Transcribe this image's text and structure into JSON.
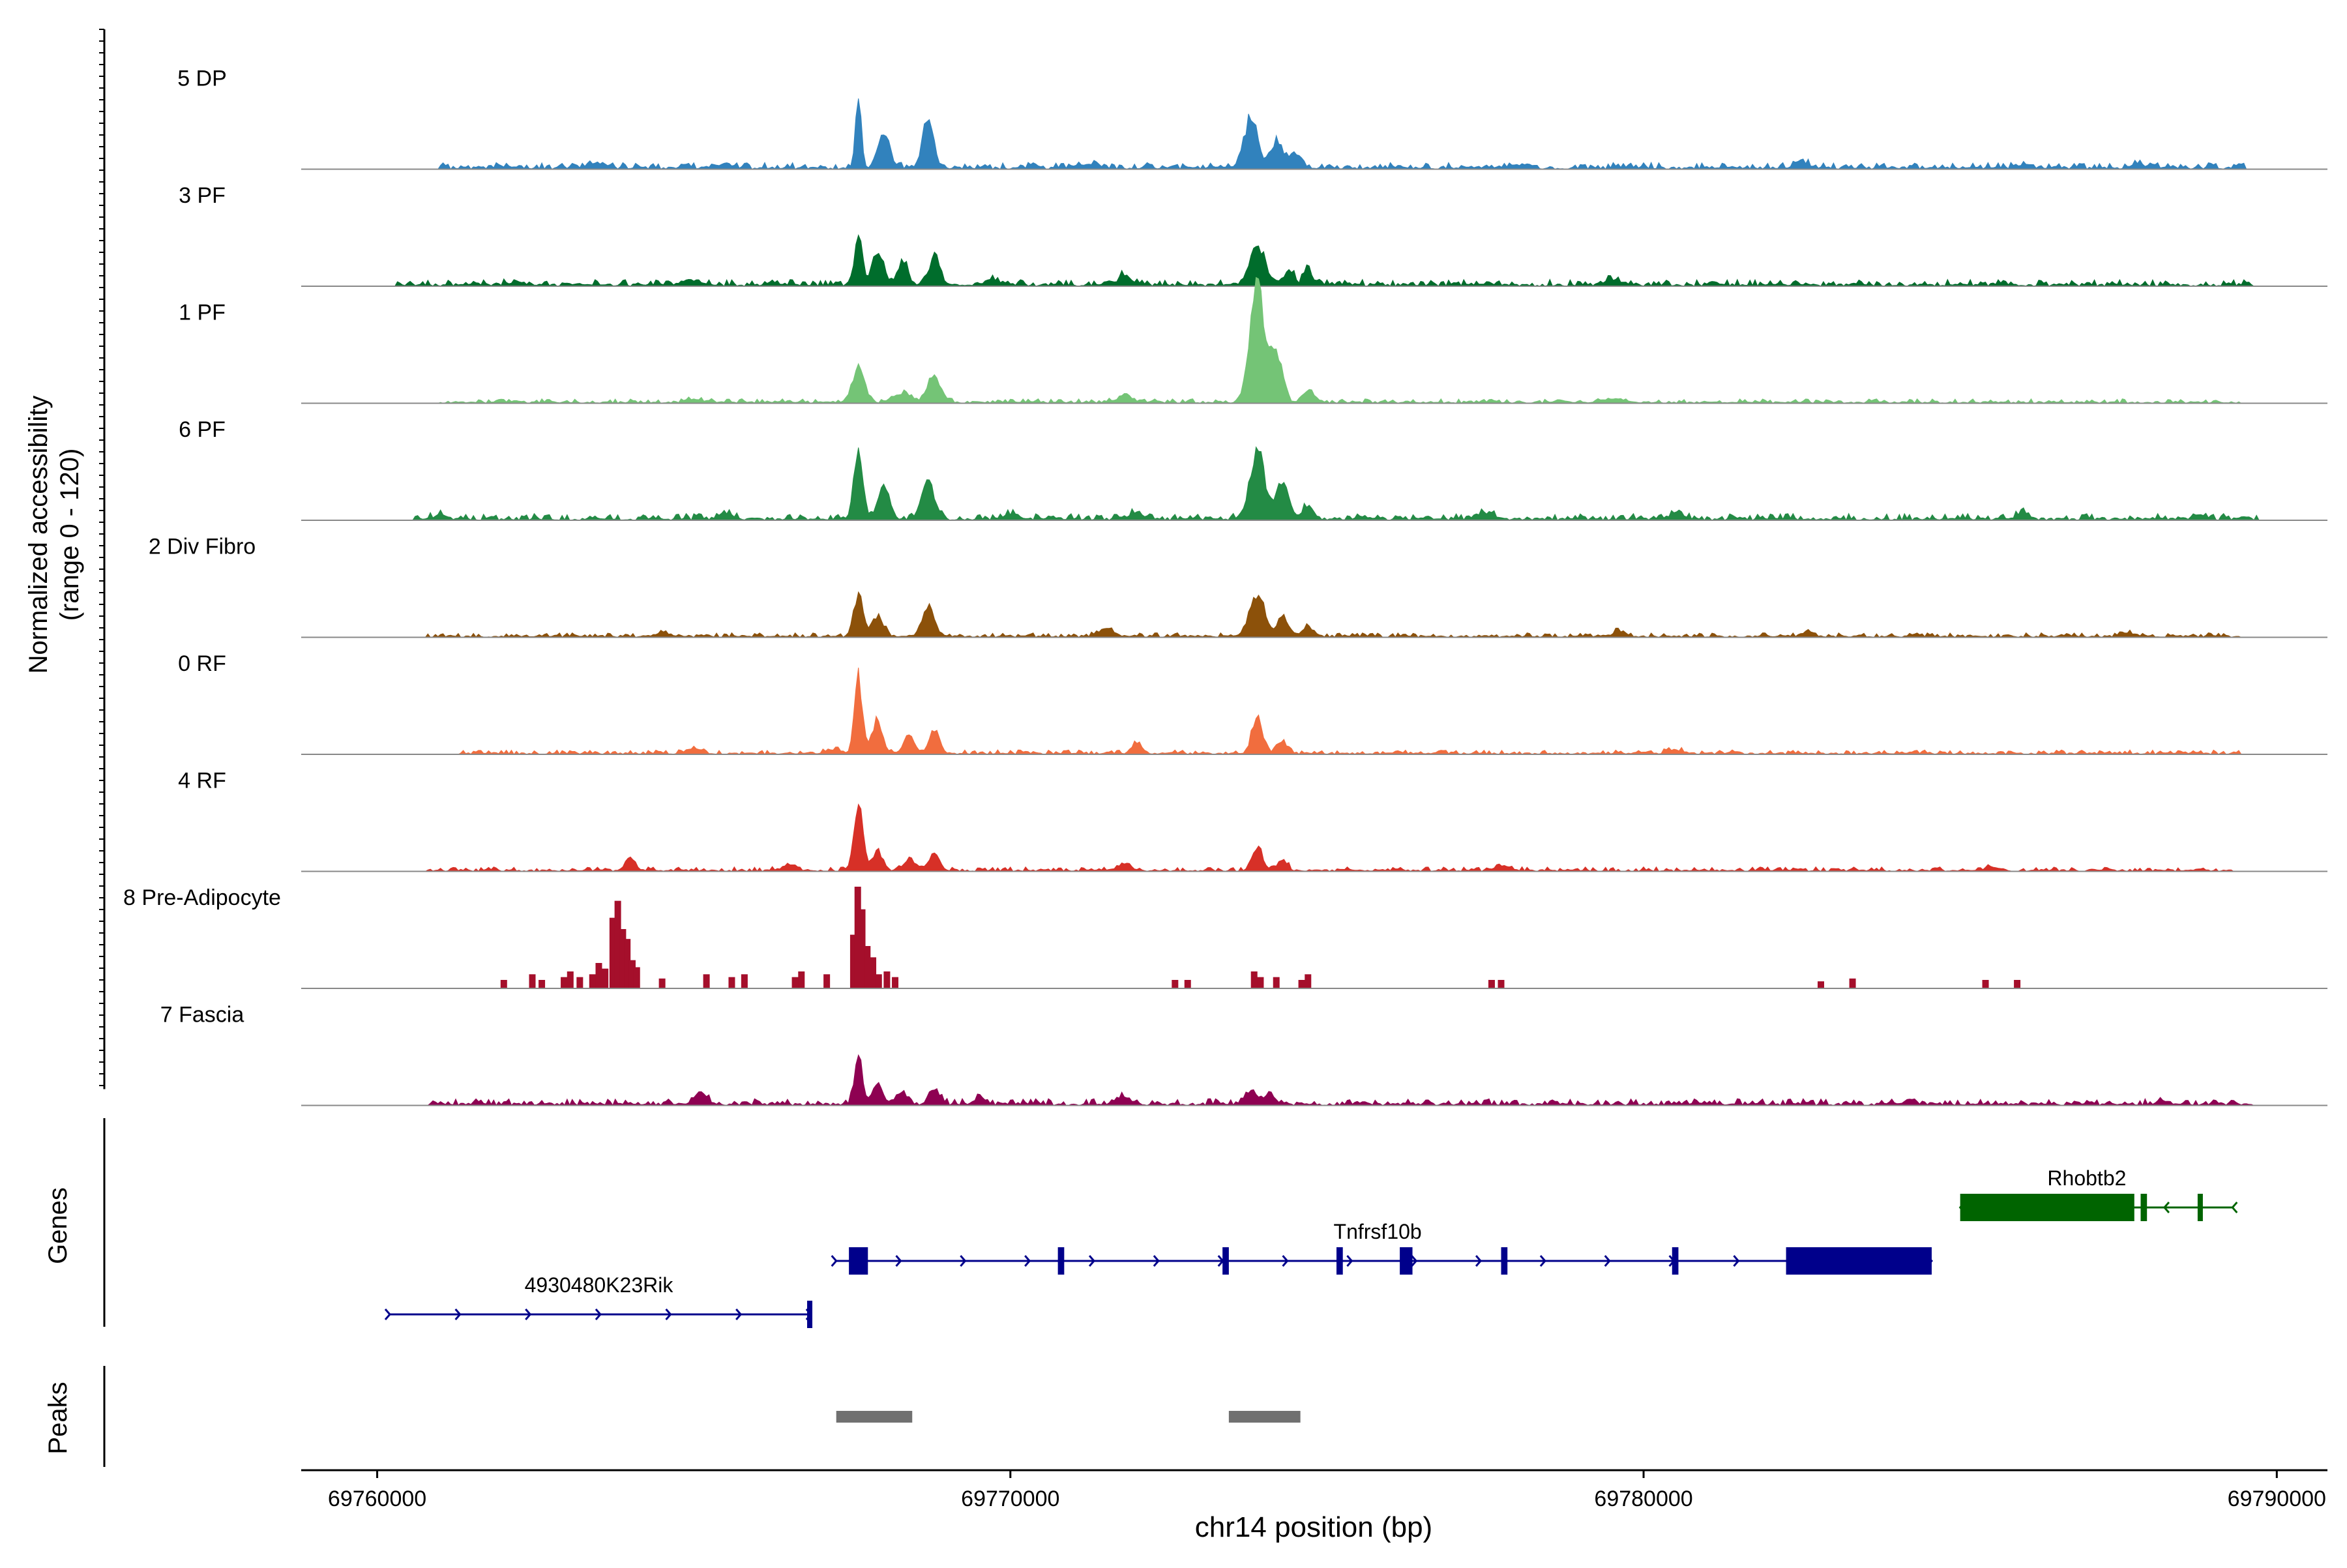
{
  "chart_data": {
    "type": "area",
    "title": "",
    "ylabel_line1": "Normalized accessibility",
    "ylabel_line2": "(range 0 - 120)",
    "xlabel": "chr14 position (bp)",
    "xlim": [
      69758800,
      69790800
    ],
    "ylim": [
      0,
      120
    ],
    "x_ticks": [
      {
        "value": 69760000,
        "label": "69760000"
      },
      {
        "value": 69770000,
        "label": "69770000"
      },
      {
        "value": 69780000,
        "label": "69780000"
      },
      {
        "value": 69790000,
        "label": "69790000"
      }
    ],
    "series": [
      {
        "name": "5 DP",
        "color": "#3182bd",
        "peaks": [
          [
            69767600,
            55,
            30
          ],
          [
            69768000,
            28,
            60
          ],
          [
            69768700,
            40,
            55
          ],
          [
            69773800,
            38,
            70
          ],
          [
            69774200,
            20,
            60
          ],
          [
            69774500,
            12,
            60
          ],
          [
            69763500,
            4,
            80
          ],
          [
            69765500,
            3,
            80
          ],
          [
            69771200,
            3,
            80
          ],
          [
            69778000,
            3,
            80
          ],
          [
            69782500,
            4,
            80
          ],
          [
            69786000,
            3,
            80
          ],
          [
            69787800,
            3,
            80
          ]
        ],
        "noise_start": 69761000,
        "noise_end": 69789500,
        "noise_level": 3
      },
      {
        "name": "3 PF",
        "color": "#006d2c",
        "peaks": [
          [
            69767600,
            42,
            35
          ],
          [
            69767900,
            25,
            60
          ],
          [
            69768300,
            20,
            50
          ],
          [
            69768800,
            25,
            50
          ],
          [
            69771800,
            8,
            60
          ],
          [
            69773900,
            30,
            80
          ],
          [
            69774400,
            12,
            50
          ],
          [
            69774700,
            15,
            40
          ],
          [
            69769700,
            4,
            80
          ],
          [
            69765000,
            4,
            80
          ],
          [
            69762200,
            3,
            80
          ],
          [
            69779500,
            4,
            80
          ]
        ],
        "noise_start": 69760300,
        "noise_end": 69789600,
        "noise_level": 3
      },
      {
        "name": "1 PF",
        "color": "#74c476",
        "peaks": [
          [
            69767600,
            28,
            60
          ],
          [
            69768800,
            20,
            70
          ],
          [
            69768300,
            8,
            80
          ],
          [
            69773900,
            90,
            75
          ],
          [
            69774200,
            40,
            60
          ],
          [
            69774700,
            10,
            60
          ],
          [
            69771800,
            5,
            80
          ],
          [
            69765000,
            3,
            80
          ],
          [
            69779500,
            3,
            80
          ]
        ],
        "noise_start": 69761000,
        "noise_end": 69789400,
        "noise_level": 2
      },
      {
        "name": "6 PF",
        "color": "#238b45",
        "peaks": [
          [
            69767600,
            55,
            45
          ],
          [
            69768000,
            25,
            60
          ],
          [
            69768700,
            32,
            65
          ],
          [
            69773900,
            55,
            75
          ],
          [
            69774300,
            30,
            60
          ],
          [
            69774700,
            12,
            50
          ],
          [
            69772000,
            5,
            80
          ],
          [
            69761000,
            4,
            60
          ],
          [
            69765500,
            4,
            80
          ],
          [
            69770000,
            4,
            80
          ],
          [
            69777500,
            5,
            80
          ],
          [
            69780500,
            4,
            80
          ],
          [
            69786000,
            5,
            60
          ],
          [
            69788800,
            4,
            60
          ]
        ],
        "noise_start": 69760600,
        "noise_end": 69789700,
        "noise_level": 3
      },
      {
        "name": "2 Div Fibro",
        "color": "#8c510a",
        "peaks": [
          [
            69767600,
            35,
            45
          ],
          [
            69767900,
            15,
            60
          ],
          [
            69768700,
            25,
            60
          ],
          [
            69773900,
            35,
            70
          ],
          [
            69774300,
            15,
            60
          ],
          [
            69774700,
            8,
            60
          ],
          [
            69771500,
            6,
            80
          ],
          [
            69764500,
            3,
            80
          ],
          [
            69779600,
            4,
            60
          ],
          [
            69782600,
            4,
            60
          ],
          [
            69787600,
            4,
            60
          ]
        ],
        "noise_start": 69760800,
        "noise_end": 69789400,
        "noise_level": 2
      },
      {
        "name": "0 RF",
        "color": "#f16d3e",
        "peaks": [
          [
            69767600,
            60,
            40
          ],
          [
            69767900,
            25,
            55
          ],
          [
            69768400,
            15,
            50
          ],
          [
            69768800,
            18,
            50
          ],
          [
            69772000,
            8,
            50
          ],
          [
            69773900,
            28,
            55
          ],
          [
            69774300,
            10,
            50
          ],
          [
            69765000,
            4,
            70
          ],
          [
            69767200,
            4,
            60
          ],
          [
            69780500,
            3,
            80
          ]
        ],
        "noise_start": 69761300,
        "noise_end": 69789400,
        "noise_level": 2
      },
      {
        "name": "4 RF",
        "color": "#d73027",
        "peaks": [
          [
            69767600,
            52,
            45
          ],
          [
            69767900,
            15,
            55
          ],
          [
            69768400,
            10,
            50
          ],
          [
            69768800,
            14,
            50
          ],
          [
            69773900,
            18,
            55
          ],
          [
            69774300,
            8,
            50
          ],
          [
            69764000,
            10,
            50
          ],
          [
            69766500,
            5,
            70
          ],
          [
            69771800,
            5,
            70
          ],
          [
            69777800,
            4,
            70
          ],
          [
            69785500,
            3,
            70
          ]
        ],
        "noise_start": 69760800,
        "noise_end": 69789400,
        "noise_level": 2
      },
      {
        "name": "8 Pre-Adipocyte",
        "color": "#a50f2b",
        "peaks": [],
        "bars": [
          [
            69762000,
            6
          ],
          [
            69762450,
            10
          ],
          [
            69762600,
            6
          ],
          [
            69762950,
            8
          ],
          [
            69763050,
            12
          ],
          [
            69763200,
            8
          ],
          [
            69763400,
            10
          ],
          [
            69763500,
            18
          ],
          [
            69763600,
            14
          ],
          [
            69763720,
            50
          ],
          [
            69763800,
            62
          ],
          [
            69763880,
            42
          ],
          [
            69763950,
            35
          ],
          [
            69764030,
            20
          ],
          [
            69764100,
            15
          ],
          [
            69764500,
            7
          ],
          [
            69765200,
            10
          ],
          [
            69765600,
            8
          ],
          [
            69765800,
            10
          ],
          [
            69766600,
            8
          ],
          [
            69766700,
            12
          ],
          [
            69767100,
            10
          ],
          [
            69767520,
            38
          ],
          [
            69767590,
            72
          ],
          [
            69767660,
            56
          ],
          [
            69767740,
            30
          ],
          [
            69767830,
            22
          ],
          [
            69767920,
            10
          ],
          [
            69768050,
            12
          ],
          [
            69768180,
            8
          ],
          [
            69772600,
            6
          ],
          [
            69772800,
            6
          ],
          [
            69773850,
            12
          ],
          [
            69773950,
            8
          ],
          [
            69774200,
            8
          ],
          [
            69774600,
            6
          ],
          [
            69774700,
            10
          ],
          [
            69777600,
            6
          ],
          [
            69777750,
            6
          ],
          [
            69782800,
            5
          ],
          [
            69783300,
            7
          ],
          [
            69785400,
            6
          ],
          [
            69785900,
            6
          ]
        ]
      },
      {
        "name": "7 Fascia",
        "color": "#8e0152",
        "peaks": [
          [
            69767600,
            38,
            40
          ],
          [
            69767900,
            15,
            55
          ],
          [
            69768300,
            10,
            55
          ],
          [
            69768800,
            14,
            50
          ],
          [
            69773800,
            10,
            60
          ],
          [
            69774100,
            8,
            60
          ],
          [
            69765100,
            8,
            70
          ],
          [
            69769500,
            5,
            60
          ],
          [
            69771800,
            6,
            60
          ],
          [
            69784200,
            3,
            60
          ],
          [
            69788200,
            3,
            60
          ]
        ],
        "noise_start": 69760800,
        "noise_end": 69789600,
        "noise_level": 3
      }
    ],
    "genes_label": "Genes",
    "genes": [
      {
        "name": "4930480K23Rik",
        "color": "#00008b",
        "start": 69760200,
        "end": 69766850,
        "strand": "+",
        "row": 2,
        "exons": [
          [
            69766790,
            69766850
          ]
        ],
        "label_pos": 69763500
      },
      {
        "name": "Tnfrsf10b",
        "color": "#00008b",
        "start": 69767250,
        "end": 69784550,
        "strand": "+",
        "row": 1,
        "exons": [
          [
            69767450,
            69767750
          ],
          [
            69770750,
            69770850
          ],
          [
            69773350,
            69773450
          ],
          [
            69775150,
            69775250
          ],
          [
            69776150,
            69776350
          ],
          [
            69777750,
            69777850
          ],
          [
            69780450,
            69780550
          ],
          [
            69782250,
            69784550
          ]
        ],
        "label_pos": 69775800
      },
      {
        "name": "Rhobtb2",
        "color": "#006400",
        "start": 69785000,
        "end": 69789300,
        "strand": "-",
        "row": 0,
        "exons": [
          [
            69785000,
            69787750
          ],
          [
            69787850,
            69787950
          ],
          [
            69788750,
            69788800
          ]
        ],
        "label_pos": 69787000
      }
    ],
    "peaks_label": "Peaks",
    "peak_regions": [
      {
        "start": 69767250,
        "end": 69768450,
        "color": "#707070"
      },
      {
        "start": 69773450,
        "end": 69774580,
        "color": "#707070"
      }
    ]
  }
}
